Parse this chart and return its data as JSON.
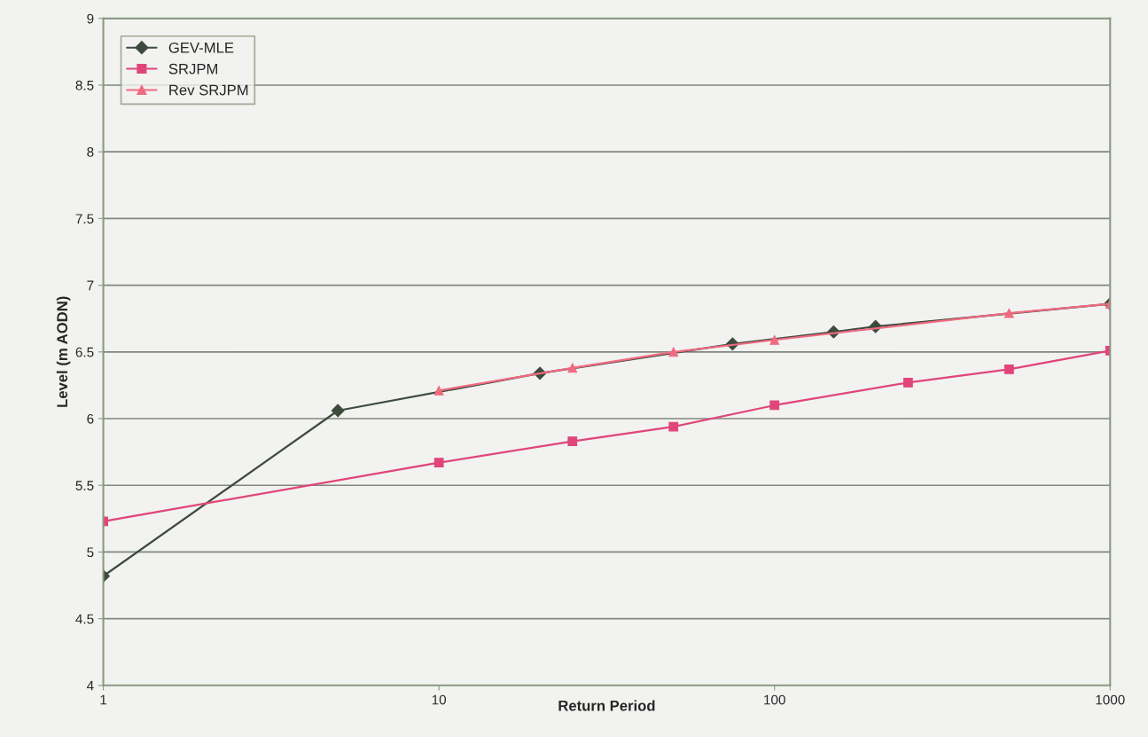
{
  "chart_data": {
    "type": "line",
    "xlabel": "Return Period",
    "ylabel": "Level (m AODN)",
    "log": "x",
    "xlim": [
      1,
      1000
    ],
    "xticks": [
      1,
      10,
      100,
      1000
    ],
    "ylim": [
      4,
      9
    ],
    "yticks": [
      4,
      4.5,
      5,
      5.5,
      6,
      6.5,
      7,
      7.5,
      8,
      8.5,
      9
    ],
    "grid": "y",
    "legend": "top left",
    "series": [
      {
        "name": "GEV-MLE",
        "color": "#3d4a3d",
        "marker": "diamond",
        "x": [
          1,
          5,
          20,
          75,
          150,
          200,
          1000
        ],
        "values": [
          4.82,
          6.06,
          6.34,
          6.56,
          6.65,
          6.69,
          6.86
        ]
      },
      {
        "name": "SRJPM",
        "color": "#e0457a",
        "marker": "square",
        "x": [
          1,
          10,
          25,
          50,
          100,
          250,
          500,
          1000
        ],
        "values": [
          5.23,
          5.67,
          5.83,
          5.94,
          6.1,
          6.27,
          6.37,
          6.51
        ]
      },
      {
        "name": "Rev SRJPM",
        "color": "#f06a80",
        "marker": "triangle",
        "x": [
          10,
          25,
          50,
          100,
          500,
          1000
        ],
        "values": [
          6.21,
          6.38,
          6.5,
          6.59,
          6.79,
          6.86
        ]
      }
    ]
  }
}
